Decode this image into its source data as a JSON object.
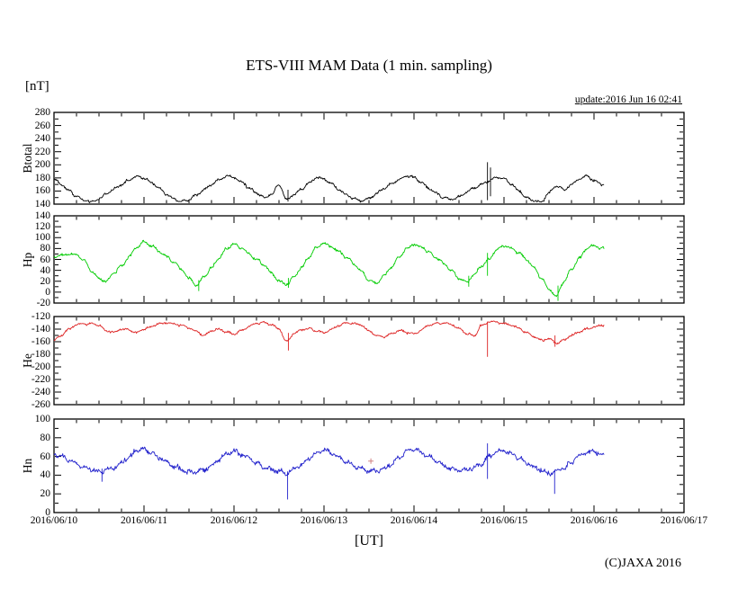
{
  "figure": {
    "title": "ETS-VIII MAM Data (1 min. sampling)",
    "unit_label": "[nT]",
    "update_text": "update:2016 Jun 16 02:41",
    "xaxis_label": "[UT]",
    "copyright": "(C)JAXA 2016"
  },
  "chart_data": {
    "type": "line",
    "title": "ETS-VIII MAM Data (1 min. sampling)",
    "x_unit": "hours since 2016/06/10 00:00 UT",
    "x_range_days": 7,
    "x_end_hours": 146.7,
    "sample_step_hours": 2,
    "grid": false,
    "legend": "none",
    "x_tick_labels": [
      "2016/06/10",
      "2016/06/11",
      "2016/06/12",
      "2016/06/13",
      "2016/06/14",
      "2016/06/15",
      "2016/06/16",
      "2016/06/17"
    ],
    "panels": [
      {
        "name": "Btotal",
        "color": "#000000",
        "ylim": [
          140,
          280
        ],
        "ytick_step": 20,
        "noise_amplitude": 2.0,
        "values": [
          178,
          170,
          161,
          152,
          146,
          143,
          148,
          156,
          163,
          170,
          177,
          182,
          180,
          173,
          164,
          155,
          148,
          144,
          147,
          154,
          162,
          170,
          177,
          183,
          181,
          174,
          165,
          157,
          150,
          155,
          170,
          147,
          155,
          163,
          172,
          181,
          179,
          171,
          162,
          154,
          148,
          145,
          149,
          156,
          164,
          171,
          178,
          183,
          181,
          173,
          164,
          156,
          150,
          147,
          151,
          158,
          165,
          170,
          176,
          181,
          179,
          170,
          160,
          150,
          145,
          143,
          158,
          168,
          162,
          170,
          178,
          183,
          176,
          170
        ],
        "spikes": [
          {
            "hour": 62.4,
            "lo": 144,
            "hi": 162
          },
          {
            "hour": 115.6,
            "lo": 146,
            "hi": 204
          },
          {
            "hour": 116.4,
            "lo": 152,
            "hi": 196
          }
        ]
      },
      {
        "name": "Hp",
        "color": "#00CC00",
        "ylim": [
          -20,
          140
        ],
        "ytick_step": 20,
        "noise_amplitude": 2.6,
        "values": [
          65,
          68,
          70,
          68,
          58,
          38,
          25,
          20,
          35,
          48,
          65,
          82,
          92,
          85,
          75,
          65,
          55,
          42,
          25,
          12,
          28,
          45,
          62,
          80,
          88,
          80,
          70,
          60,
          50,
          35,
          20,
          15,
          28,
          45,
          65,
          82,
          90,
          83,
          74,
          64,
          52,
          38,
          22,
          16,
          30,
          46,
          64,
          80,
          88,
          82,
          73,
          63,
          52,
          40,
          25,
          18,
          32,
          48,
          60,
          78,
          85,
          80,
          72,
          60,
          45,
          25,
          5,
          -8,
          20,
          42,
          62,
          80,
          86,
          80
        ],
        "spikes": [
          {
            "hour": 38.6,
            "lo": 2,
            "hi": 22
          },
          {
            "hour": 62.5,
            "lo": 8,
            "hi": 26
          },
          {
            "hour": 110.6,
            "lo": 10,
            "hi": 30
          },
          {
            "hour": 115.6,
            "lo": 30,
            "hi": 72
          },
          {
            "hour": 134.4,
            "lo": -16,
            "hi": 12
          }
        ]
      },
      {
        "name": "He",
        "color": "#DD2222",
        "ylim": [
          -260,
          -120
        ],
        "ytick_step": 20,
        "noise_amplitude": 1.8,
        "values": [
          -157,
          -150,
          -140,
          -133,
          -131,
          -131,
          -134,
          -143,
          -145,
          -140,
          -141,
          -146,
          -140,
          -136,
          -131,
          -130,
          -132,
          -134,
          -138,
          -144,
          -150,
          -143,
          -140,
          -144,
          -148,
          -142,
          -135,
          -131,
          -130,
          -133,
          -140,
          -160,
          -147,
          -141,
          -139,
          -143,
          -146,
          -140,
          -134,
          -130,
          -131,
          -134,
          -143,
          -150,
          -152,
          -147,
          -142,
          -145,
          -148,
          -141,
          -134,
          -131,
          -130,
          -133,
          -139,
          -147,
          -150,
          -135,
          -128,
          -129,
          -131,
          -134,
          -139,
          -146,
          -152,
          -158,
          -155,
          -162,
          -157,
          -150,
          -145,
          -140,
          -137,
          -134
        ],
        "spikes": [
          {
            "hour": 62.5,
            "lo": -174,
            "hi": -146
          },
          {
            "hour": 115.6,
            "lo": -184,
            "hi": -128
          },
          {
            "hour": 133.6,
            "lo": -168,
            "hi": -150
          }
        ]
      },
      {
        "name": "Hn",
        "color": "#2222CC",
        "ylim": [
          0,
          100
        ],
        "ytick_step": 20,
        "noise_amplitude": 2.6,
        "values": [
          62,
          60,
          56,
          52,
          48,
          46,
          43,
          46,
          48,
          53,
          59,
          66,
          68,
          64,
          59,
          54,
          49,
          46,
          44,
          43,
          46,
          50,
          57,
          63,
          66,
          62,
          58,
          53,
          49,
          46,
          44,
          42,
          46,
          51,
          58,
          64,
          67,
          64,
          59,
          54,
          50,
          47,
          45,
          44,
          47,
          52,
          59,
          65,
          68,
          64,
          60,
          55,
          50,
          47,
          45,
          46,
          48,
          52,
          60,
          65,
          66,
          63,
          58,
          53,
          48,
          45,
          42,
          44,
          48,
          54,
          60,
          64,
          65,
          62
        ],
        "spikes": [
          {
            "hour": 12.8,
            "lo": 33,
            "hi": 47
          },
          {
            "hour": 62.3,
            "lo": 14,
            "hi": 44
          },
          {
            "hour": 115.6,
            "lo": 36,
            "hi": 74
          },
          {
            "hour": 133.5,
            "lo": 20,
            "hi": 45
          }
        ]
      }
    ],
    "artifact_marker": {
      "panel": "Hn",
      "hour": 84.5,
      "value": 55,
      "color": "#cc7777",
      "symbol": "+"
    }
  }
}
